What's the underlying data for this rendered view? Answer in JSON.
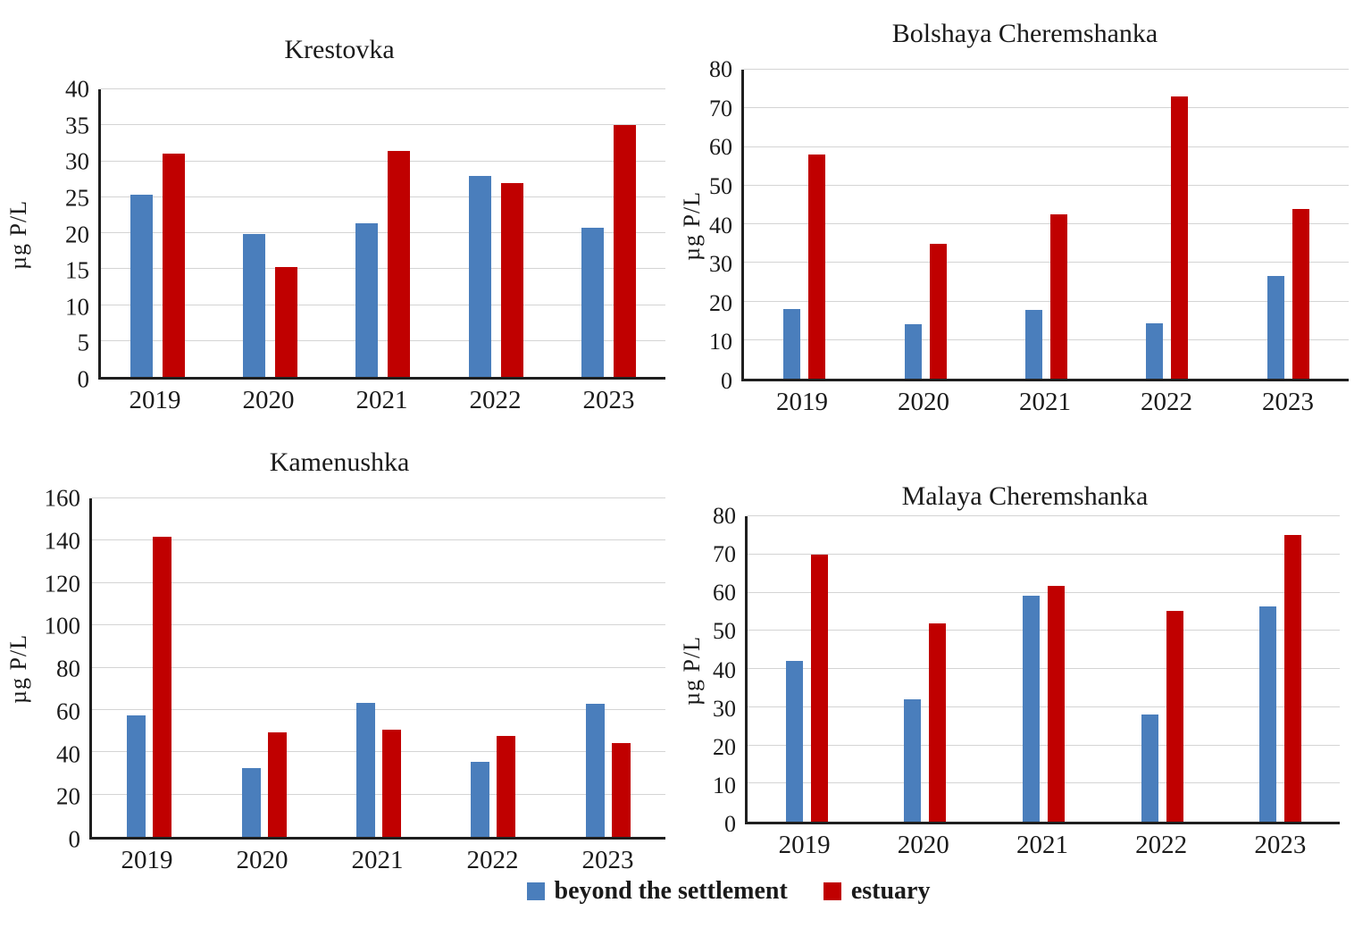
{
  "figure": {
    "background": "#ffffff",
    "gridline_color": "#d4d4d4",
    "axis_color": "#1f1f1f"
  },
  "legend": {
    "items": [
      {
        "label": "beyond the settlement",
        "color": "#4a7ebc"
      },
      {
        "label": "estuary",
        "color": "#c00000"
      }
    ]
  },
  "chart_data": [
    {
      "type": "bar",
      "title": "Krestovka",
      "ylabel": "µg P/L",
      "xlabel": "",
      "ylim": [
        0,
        40
      ],
      "ytick_step": 5,
      "grid": true,
      "legend_position": "bottom-shared",
      "categories": [
        "2019",
        "2020",
        "2021",
        "2022",
        "2023"
      ],
      "series": [
        {
          "name": "beyond the settlement",
          "color": "#4a7ebc",
          "values": [
            25.3,
            19.9,
            21.4,
            28,
            20.8
          ]
        },
        {
          "name": "estuary",
          "color": "#c00000",
          "values": [
            31,
            15.3,
            31.4,
            26.9,
            35
          ]
        }
      ]
    },
    {
      "type": "bar",
      "title": "Bolshaya Cheremshanka",
      "ylabel": "µg P/L",
      "xlabel": "",
      "ylim": [
        0,
        80
      ],
      "ytick_step": 10,
      "grid": true,
      "legend_position": "bottom-shared",
      "categories": [
        "2019",
        "2020",
        "2021",
        "2022",
        "2023"
      ],
      "series": [
        {
          "name": "beyond the settlement",
          "color": "#4a7ebc",
          "values": [
            18,
            14,
            17.7,
            14.3,
            26.5
          ]
        },
        {
          "name": "estuary",
          "color": "#c00000",
          "values": [
            58,
            35,
            42.5,
            73,
            44
          ]
        }
      ]
    },
    {
      "type": "bar",
      "title": "Kamenushka",
      "ylabel": "µg P/L",
      "xlabel": "",
      "ylim": [
        0,
        160
      ],
      "ytick_step": 20,
      "grid": true,
      "legend_position": "bottom-shared",
      "categories": [
        "2019",
        "2020",
        "2021",
        "2022",
        "2023"
      ],
      "series": [
        {
          "name": "beyond the settlement",
          "color": "#4a7ebc",
          "values": [
            57.5,
            32.5,
            63.5,
            35.5,
            63
          ]
        },
        {
          "name": "estuary",
          "color": "#c00000",
          "values": [
            142,
            49.5,
            50.5,
            47.5,
            44.5
          ]
        }
      ]
    },
    {
      "type": "bar",
      "title": "Malaya Cheremshanka",
      "ylabel": "µg P/L",
      "xlabel": "",
      "ylim": [
        0,
        80
      ],
      "ytick_step": 10,
      "grid": true,
      "legend_position": "bottom-shared",
      "categories": [
        "2019",
        "2020",
        "2021",
        "2022",
        "2023"
      ],
      "series": [
        {
          "name": "beyond the settlement",
          "color": "#4a7ebc",
          "values": [
            42,
            32,
            59.3,
            28,
            56.3
          ]
        },
        {
          "name": "estuary",
          "color": "#c00000",
          "values": [
            70,
            52,
            61.8,
            55.3,
            75
          ]
        }
      ]
    }
  ]
}
